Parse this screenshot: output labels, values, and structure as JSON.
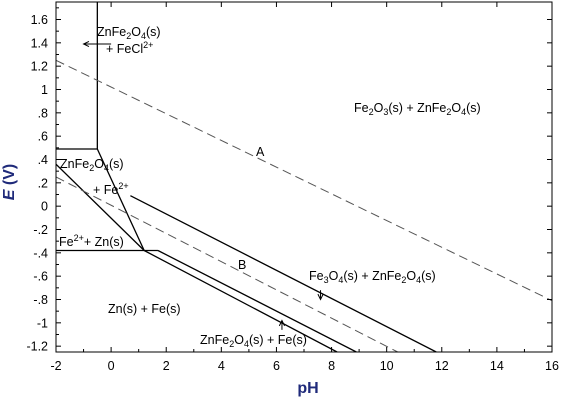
{
  "chart_data": {
    "type": "line",
    "title": "",
    "xlabel": "pH",
    "ylabel": "E (V)",
    "xlim": [
      -2,
      16
    ],
    "ylim": [
      -1.25,
      1.75
    ],
    "xticks": [
      -2,
      0,
      2,
      4,
      6,
      8,
      10,
      12,
      14,
      16
    ],
    "yticks": [
      1.6,
      1.4,
      1.2,
      1,
      0.8,
      0.6,
      0.4,
      0.2,
      0,
      -0.2,
      -0.4,
      -0.6,
      -0.8,
      -1,
      -1.2
    ],
    "xtick_labels": [
      "-2",
      "0",
      "2",
      "4",
      "6",
      "8",
      "10",
      "12",
      "14",
      "16"
    ],
    "ytick_labels": [
      "1.6",
      "1.4",
      "1.2",
      "1",
      ".8",
      ".6",
      ".4",
      ".2",
      "0",
      "-.2",
      "-.4",
      "-.6",
      "-.8",
      "-1",
      "-1.2"
    ],
    "colors": {
      "axis_title": "#1f2a7a",
      "lines": "#000000",
      "water_lines": "#555555"
    },
    "boundaries": [
      {
        "style": "solid",
        "x": [
          -0.5,
          -0.5
        ],
        "y": [
          1.75,
          0.49
        ]
      },
      {
        "style": "solid",
        "x": [
          -2,
          -0.5
        ],
        "y": [
          0.49,
          0.49
        ]
      },
      {
        "style": "solid",
        "x": [
          -0.5,
          1.2
        ],
        "y": [
          0.49,
          -0.38
        ]
      },
      {
        "style": "solid",
        "x": [
          -2,
          1.7
        ],
        "y": [
          -0.38,
          -0.38
        ]
      },
      {
        "style": "solid",
        "x": [
          -2,
          1.2
        ],
        "y": [
          0.36,
          -0.38
        ]
      },
      {
        "style": "solid",
        "x": [
          0.7,
          11.8
        ],
        "y": [
          0.09,
          -1.25
        ]
      },
      {
        "style": "solid",
        "x": [
          1.2,
          8.2
        ],
        "y": [
          -0.38,
          -1.25
        ]
      },
      {
        "style": "solid",
        "x": [
          1.7,
          8.9
        ],
        "y": [
          -0.38,
          -1.25
        ]
      },
      {
        "style": "dashed",
        "x": [
          -2,
          16
        ],
        "y": [
          1.25,
          -0.81
        ]
      },
      {
        "style": "dashed",
        "x": [
          -2,
          10.4
        ],
        "y": [
          0.25,
          -1.25
        ]
      }
    ],
    "annotations": [
      {
        "text": "A",
        "x": 5.1,
        "y": 0.57
      },
      {
        "text": "B",
        "x": 4.1,
        "y": -0.47
      },
      {
        "text": "Fe2O3(s) + ZnFe2O4(s)",
        "x": 10.4,
        "y": 0.98
      },
      {
        "text": "Fe3O4(s) + ZnFe2O4(s)",
        "x": 9.6,
        "y": -0.6
      },
      {
        "text": "ZnFe2O4(s) + Fe(s)",
        "x": 5.7,
        "y": -1.18
      },
      {
        "text": "Zn(s) + Fe(s)",
        "x": 0.1,
        "y": -0.9
      },
      {
        "text": "Fe2+ + Zn(s)",
        "x": -0.9,
        "y": -0.27
      },
      {
        "text": "ZnFe2O4(s) + Fe2+",
        "x": -1.5,
        "y": 0.34
      },
      {
        "text": "ZnFe2O4(s) + FeCl2+",
        "x": 0.2,
        "y": 1.55
      }
    ],
    "arrows": [
      {
        "x": [
          0.0,
          -1.0
        ],
        "y": [
          1.39,
          1.39
        ]
      },
      {
        "x": [
          7.6,
          7.6
        ],
        "y": [
          -0.72,
          -0.8
        ]
      },
      {
        "x": [
          6.2,
          6.2
        ],
        "y": [
          -1.06,
          -0.98
        ]
      }
    ]
  },
  "labels": {
    "A": "A",
    "B": "B",
    "fe2o3": {
      "a": "Fe",
      "b": "2",
      "c": "O",
      "d": "3",
      "e": "(s) + ZnFe",
      "f": "2",
      "g": "O",
      "h": "4",
      "i": "(s)"
    },
    "fe3o4": {
      "a": "Fe",
      "b": "3",
      "c": "O",
      "d": "4",
      "e": "(s) + ZnFe",
      "f": "2",
      "g": "O",
      "h": "4",
      "i": "(s)"
    },
    "znfe_fe": {
      "a": "ZnFe",
      "b": "2",
      "c": "O",
      "d": "4",
      "e": "(s) + Fe(s)"
    },
    "zn_fe": "Zn(s) + Fe(s)",
    "fe2_zn": {
      "a": "Fe",
      "b": "2+",
      "c": "+ Zn(s)"
    },
    "znfe_fe2_top": {
      "a": "ZnFe",
      "b": "2",
      "c": "O",
      "d": "4",
      "e": "(s)"
    },
    "znfe_fe2_bottom": {
      "a": "+ Fe",
      "b": "2+"
    },
    "fecl_top": {
      "a": "ZnFe",
      "b": "2",
      "c": "O",
      "d": "4",
      "e": "(s)"
    },
    "fecl_bottom": {
      "a": "+ FeCl",
      "b": "2+"
    }
  }
}
